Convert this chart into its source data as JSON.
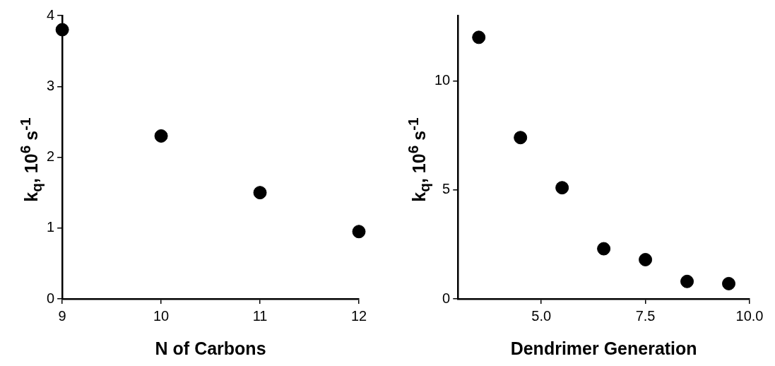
{
  "chart_data": [
    {
      "type": "scatter",
      "xlabel": "N of Carbons",
      "ylabel": "k$_{q}$, 10$^{6}$ s$^{-1}$",
      "marker": "circle",
      "series": [
        {
          "color": "#000000",
          "x": [
            9,
            10,
            11,
            12
          ],
          "values": [
            3.8,
            2.3,
            1.5,
            0.95
          ]
        }
      ],
      "xlim": [
        9,
        12
      ],
      "xticks": [
        9,
        10,
        11,
        12
      ],
      "ylim": [
        0,
        4
      ],
      "yticks": [
        0,
        1,
        2,
        3,
        4
      ]
    },
    {
      "type": "scatter",
      "xlabel": "Dendrimer Generation",
      "ylabel": "k$_{q}$, 10$^{6}$ s$^{-1}$",
      "marker": "circle",
      "series": [
        {
          "color": "#000000",
          "x": [
            3.5,
            4.5,
            5.5,
            6.5,
            7.5,
            8.5,
            9.5
          ],
          "values": [
            12.0,
            7.4,
            5.1,
            2.3,
            1.8,
            0.8,
            0.7
          ]
        }
      ],
      "xlim": [
        3,
        10
      ],
      "xticks": [
        {
          "value": 5,
          "label": "5.0"
        },
        7.5,
        {
          "value": 10,
          "label": "10.0"
        }
      ],
      "ylim": [
        0,
        13
      ],
      "yticks": [
        0,
        5,
        10
      ]
    }
  ]
}
